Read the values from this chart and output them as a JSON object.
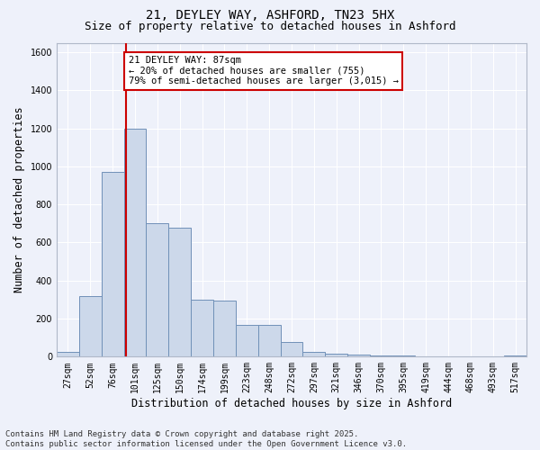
{
  "title_line1": "21, DEYLEY WAY, ASHFORD, TN23 5HX",
  "title_line2": "Size of property relative to detached houses in Ashford",
  "xlabel": "Distribution of detached houses by size in Ashford",
  "ylabel": "Number of detached properties",
  "categories": [
    "27sqm",
    "52sqm",
    "76sqm",
    "101sqm",
    "125sqm",
    "150sqm",
    "174sqm",
    "199sqm",
    "223sqm",
    "248sqm",
    "272sqm",
    "297sqm",
    "321sqm",
    "346sqm",
    "370sqm",
    "395sqm",
    "419sqm",
    "444sqm",
    "468sqm",
    "493sqm",
    "517sqm"
  ],
  "values": [
    25,
    320,
    970,
    1200,
    700,
    680,
    300,
    295,
    165,
    165,
    75,
    25,
    15,
    10,
    5,
    5,
    3,
    2,
    2,
    2,
    8
  ],
  "bar_color": "#ccd8ea",
  "bar_edge_color": "#7090b8",
  "red_line_x": 2.6,
  "annotation_line1": "21 DEYLEY WAY: 87sqm",
  "annotation_line2": "← 20% of detached houses are smaller (755)",
  "annotation_line3": "79% of semi-detached houses are larger (3,015) →",
  "annotation_box_color": "white",
  "annotation_box_edge_color": "#cc0000",
  "ylim": [
    0,
    1650
  ],
  "yticks": [
    0,
    200,
    400,
    600,
    800,
    1000,
    1200,
    1400,
    1600
  ],
  "background_color": "#eef1fa",
  "grid_color": "#ffffff",
  "footer_line1": "Contains HM Land Registry data © Crown copyright and database right 2025.",
  "footer_line2": "Contains public sector information licensed under the Open Government Licence v3.0.",
  "red_line_color": "#cc0000",
  "title_fontsize": 10,
  "subtitle_fontsize": 9,
  "axis_label_fontsize": 8.5,
  "tick_fontsize": 7,
  "annotation_fontsize": 7.5,
  "footer_fontsize": 6.5
}
